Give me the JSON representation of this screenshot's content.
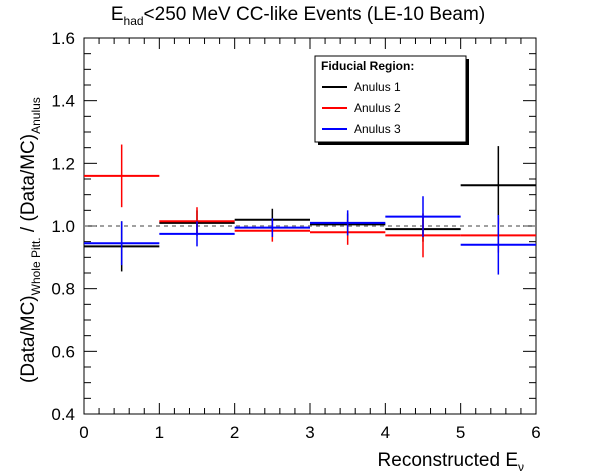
{
  "title": {
    "main": "E",
    "sub": "had",
    "rest": "<250 MeV CC-like Events (LE-10 Beam)"
  },
  "axes": {
    "xlabel_main": "Reconstructed E",
    "xlabel_sub": "ν",
    "ylabel_a": "(Data/MC)",
    "ylabel_a_sub": "Whole Pitt.",
    "ylabel_mid": " / (Data/MC)",
    "ylabel_b_sub": "Anulus"
  },
  "legend": {
    "header": "Fiducial Region:"
  },
  "chart_data": {
    "type": "scatter",
    "title": "E_had<250 MeV CC-like Events (LE-10 Beam)",
    "xlabel": "Reconstructed E_ν",
    "ylabel": "(Data/MC)_Whole Pitt. / (Data/MC)_Anulus",
    "xlim": [
      0,
      6
    ],
    "ylim": [
      0.4,
      1.6
    ],
    "x_ticks": [
      0,
      1,
      2,
      3,
      4,
      5,
      6
    ],
    "x_tick_labels": [
      "0",
      "1",
      "2",
      "3",
      "4",
      "5",
      "6"
    ],
    "y_ticks": [
      0.4,
      0.6,
      0.8,
      1.0,
      1.2,
      1.4,
      1.6
    ],
    "y_tick_labels": [
      "0.4",
      "0.6",
      "0.8",
      "1.0",
      "1.2",
      "1.4",
      "1.6"
    ],
    "reference_line": 1.0,
    "legend_position": "top-right",
    "series": [
      {
        "name": "Anulus 1",
        "color": "#000000",
        "points": [
          {
            "x": 0.5,
            "xerr": 0.5,
            "y": 0.935,
            "yerr": 0.08
          },
          {
            "x": 1.5,
            "xerr": 0.5,
            "y": 1.01,
            "yerr": 0.04
          },
          {
            "x": 2.5,
            "xerr": 0.5,
            "y": 1.02,
            "yerr": 0.035
          },
          {
            "x": 3.5,
            "xerr": 0.5,
            "y": 1.005,
            "yerr": 0.035
          },
          {
            "x": 4.5,
            "xerr": 0.5,
            "y": 0.99,
            "yerr": 0.04
          },
          {
            "x": 5.5,
            "xerr": 0.5,
            "y": 1.13,
            "yerr": 0.125
          }
        ]
      },
      {
        "name": "Anulus 2",
        "color": "#ff0000",
        "points": [
          {
            "x": 0.5,
            "xerr": 0.5,
            "y": 1.16,
            "yerr": 0.1
          },
          {
            "x": 1.5,
            "xerr": 0.5,
            "y": 1.015,
            "yerr": 0.045
          },
          {
            "x": 2.5,
            "xerr": 0.5,
            "y": 0.985,
            "yerr": 0.035
          },
          {
            "x": 3.5,
            "xerr": 0.5,
            "y": 0.98,
            "yerr": 0.04
          },
          {
            "x": 4.5,
            "xerr": 0.5,
            "y": 0.97,
            "yerr": 0.07
          },
          {
            "x": 5.5,
            "xerr": 0.5,
            "y": 0.97,
            "yerr": 0.055
          }
        ]
      },
      {
        "name": "Anulus 3",
        "color": "#0000ff",
        "points": [
          {
            "x": 0.5,
            "xerr": 0.5,
            "y": 0.945,
            "yerr": 0.07
          },
          {
            "x": 1.5,
            "xerr": 0.5,
            "y": 0.975,
            "yerr": 0.04
          },
          {
            "x": 2.5,
            "xerr": 0.5,
            "y": 0.995,
            "yerr": 0.03
          },
          {
            "x": 3.5,
            "xerr": 0.5,
            "y": 1.01,
            "yerr": 0.04
          },
          {
            "x": 4.5,
            "xerr": 0.5,
            "y": 1.03,
            "yerr": 0.065
          },
          {
            "x": 5.5,
            "xerr": 0.5,
            "y": 0.94,
            "yerr": 0.095
          }
        ]
      }
    ]
  }
}
